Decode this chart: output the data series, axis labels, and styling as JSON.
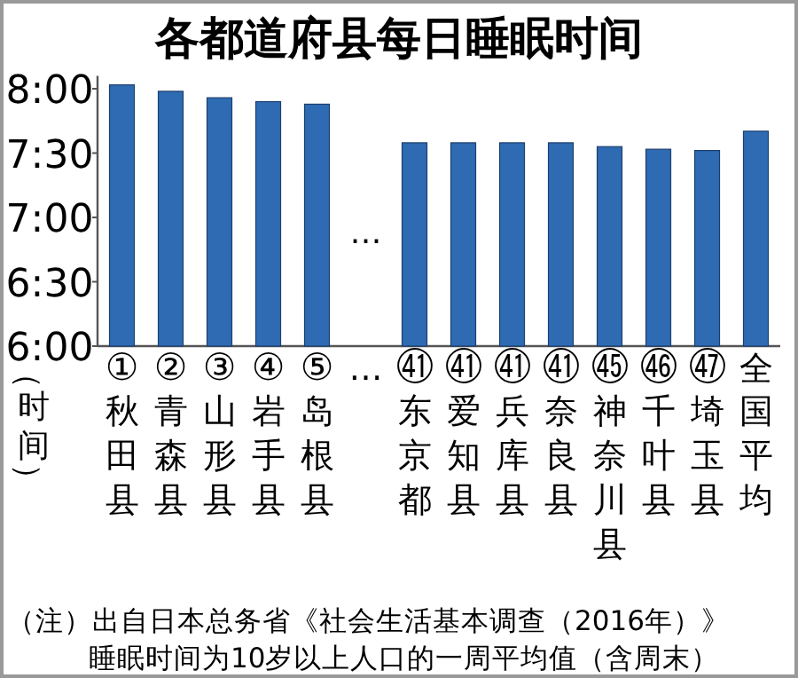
{
  "chart_data": {
    "type": "bar",
    "title": "各都道府县每日睡眠时间",
    "ylabel": "（时间）",
    "categories": [
      "①秋田县",
      "②青森县",
      "③山形县",
      "④岩手县",
      "⑤岛根县",
      "…",
      "㊶东京都",
      "㊶爱知县",
      "㊶兵库县",
      "㊶奈良县",
      "㊺神奈川县",
      "㊻千叶县",
      "㊼埼玉县",
      "全国平均"
    ],
    "values": [
      8.03,
      7.98,
      7.93,
      7.9,
      7.88,
      null,
      7.58,
      7.58,
      7.58,
      7.58,
      7.55,
      7.53,
      7.52,
      7.67
    ],
    "color": "#2e6bb3",
    "ylim": [
      6,
      8.1
    ],
    "yticks": [
      {
        "value": 6,
        "label": "6:00"
      },
      {
        "value": 6.5,
        "label": "6:30"
      },
      {
        "value": 7,
        "label": "7:00"
      },
      {
        "value": 7.5,
        "label": "7:30"
      },
      {
        "value": 8,
        "label": "8:00"
      }
    ],
    "grid": false,
    "annotations": [
      "…",
      "（注）出自日本总务省《社会生活基本调查（2016年）》",
      "睡眠时间为10岁以上人口的一周平均值（含周末）"
    ]
  }
}
